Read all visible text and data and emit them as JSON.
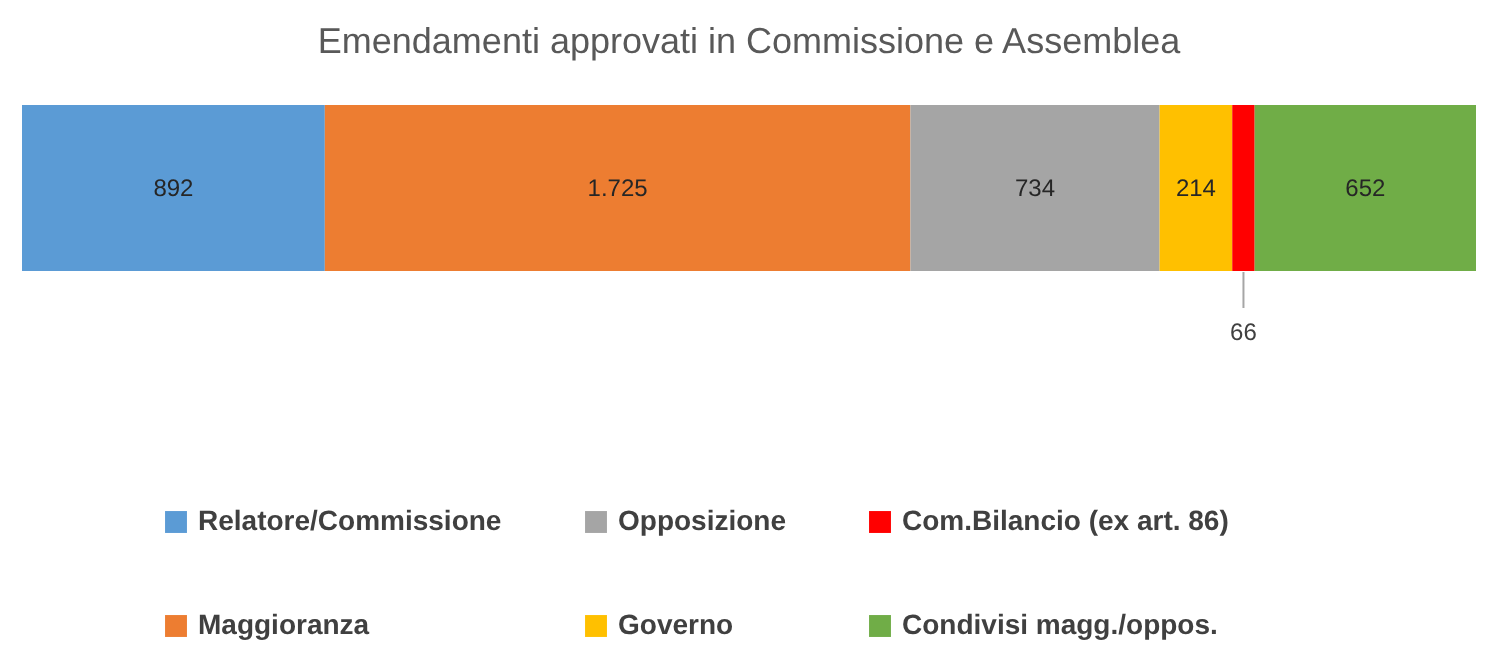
{
  "chart_data": {
    "type": "bar",
    "orientation": "horizontal",
    "stacked": true,
    "title": "Emendamenti approvati in Commissione e Assemblea",
    "categories": [
      null
    ],
    "series": [
      {
        "name": "Relatore/Commissione",
        "color": "#5b9bd5",
        "values": [
          892
        ],
        "value_labels": [
          "892"
        ]
      },
      {
        "name": "Maggioranza",
        "color": "#ed7d31",
        "values": [
          1725
        ],
        "value_labels": [
          "1.725"
        ]
      },
      {
        "name": "Opposizione",
        "color": "#a5a5a5",
        "values": [
          734
        ],
        "value_labels": [
          "734"
        ]
      },
      {
        "name": "Governo",
        "color": "#ffc000",
        "values": [
          214
        ],
        "value_labels": [
          "214"
        ]
      },
      {
        "name": "Com.Bilancio (ex art. 86)",
        "color": "#ff0000",
        "values": [
          66
        ],
        "value_labels": [
          "66"
        ]
      },
      {
        "name": "Condivisi magg./oppos.",
        "color": "#70ad47",
        "values": [
          652
        ],
        "value_labels": [
          "652"
        ]
      }
    ],
    "legend": "bottom",
    "grid": false
  }
}
